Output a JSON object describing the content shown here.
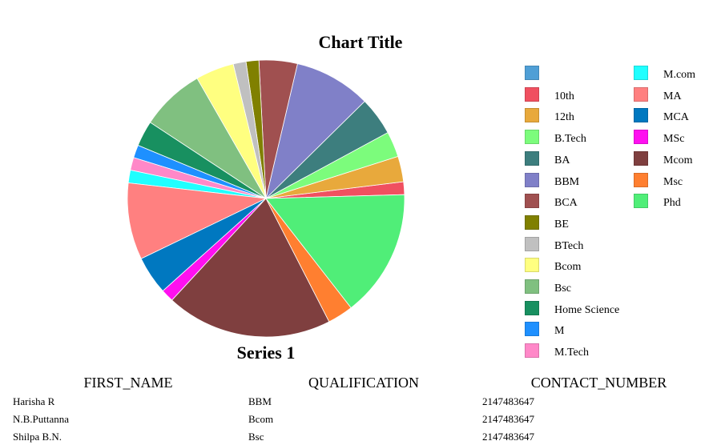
{
  "chart_data": {
    "type": "pie",
    "title": "Chart Title",
    "series_label": "Series 1",
    "legend_placement": "right",
    "slices": [
      {
        "label": "",
        "value": 0,
        "color": "#4F9FD6"
      },
      {
        "label": "10th",
        "value": 1.5,
        "color": "#F05060"
      },
      {
        "label": "12th",
        "value": 3,
        "color": "#E8A93C"
      },
      {
        "label": "B.Tech",
        "value": 3,
        "color": "#7CFC7C"
      },
      {
        "label": "BA",
        "value": 4.5,
        "color": "#3D7E7E"
      },
      {
        "label": "BBM",
        "value": 9,
        "color": "#8080C8"
      },
      {
        "label": "BCA",
        "value": 4.5,
        "color": "#A05050"
      },
      {
        "label": "BE",
        "value": 1.5,
        "color": "#808000"
      },
      {
        "label": "BTech",
        "value": 1.5,
        "color": "#C0C0C0"
      },
      {
        "label": "Bcom",
        "value": 4.5,
        "color": "#FFFF80"
      },
      {
        "label": "Bsc",
        "value": 7.5,
        "color": "#80C080"
      },
      {
        "label": "Home Science",
        "value": 3,
        "color": "#189060"
      },
      {
        "label": "M",
        "value": 1.5,
        "color": "#1E90FF"
      },
      {
        "label": "M.Tech",
        "value": 1.5,
        "color": "#FF88C8"
      },
      {
        "label": "M.com",
        "value": 1.5,
        "color": "#20FFFF"
      },
      {
        "label": "MA",
        "value": 9,
        "color": "#FF8080"
      },
      {
        "label": "MCA",
        "value": 4.5,
        "color": "#0078C0"
      },
      {
        "label": "MSc",
        "value": 1.5,
        "color": "#FF10F0"
      },
      {
        "label": "Mcom",
        "value": 19.5,
        "color": "#7F3F3F"
      },
      {
        "label": "Msc",
        "value": 3,
        "color": "#FF7F30"
      },
      {
        "label": "Phd",
        "value": 15,
        "color": "#50EE78"
      }
    ]
  },
  "table": {
    "headers": [
      "FIRST_NAME",
      "QUALIFICATION",
      "CONTACT_NUMBER"
    ],
    "rows": [
      [
        "Harisha R",
        "BBM",
        "2147483647"
      ],
      [
        "N.B.Puttanna",
        "Bcom",
        "2147483647"
      ],
      [
        "Shilpa B.N.",
        "Bsc",
        "2147483647"
      ]
    ]
  }
}
